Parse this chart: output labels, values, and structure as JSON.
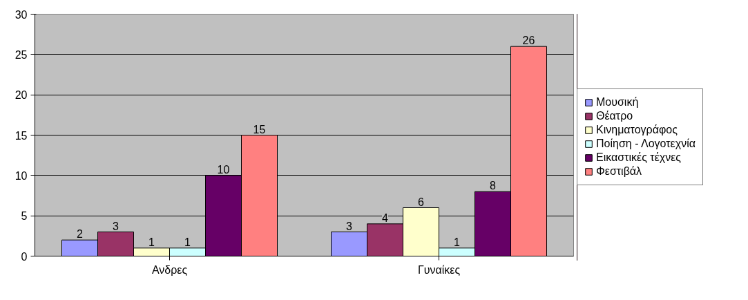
{
  "chart_data": {
    "type": "bar",
    "categories": [
      "Ανδρες",
      "Γυναίκες"
    ],
    "series": [
      {
        "name": "Μουσική",
        "color": "#9999ff",
        "values": [
          2,
          3
        ]
      },
      {
        "name": "Θέατρο",
        "color": "#993366",
        "values": [
          3,
          4
        ]
      },
      {
        "name": "Κινηματογράφος",
        "color": "#ffffcc",
        "values": [
          1,
          6
        ]
      },
      {
        "name": "Ποίηση - Λογοτεχνία",
        "color": "#ccffff",
        "values": [
          1,
          1
        ]
      },
      {
        "name": "Εικαστικές τέχνες",
        "color": "#660066",
        "values": [
          10,
          8
        ]
      },
      {
        "name": "Φεστιβάλ",
        "color": "#ff8080",
        "values": [
          15,
          26
        ]
      }
    ],
    "ylim": [
      0,
      30
    ],
    "yticks": [
      0,
      5,
      10,
      15,
      20,
      25,
      30
    ],
    "grid": "y",
    "legend": "right",
    "data_labels": true
  }
}
